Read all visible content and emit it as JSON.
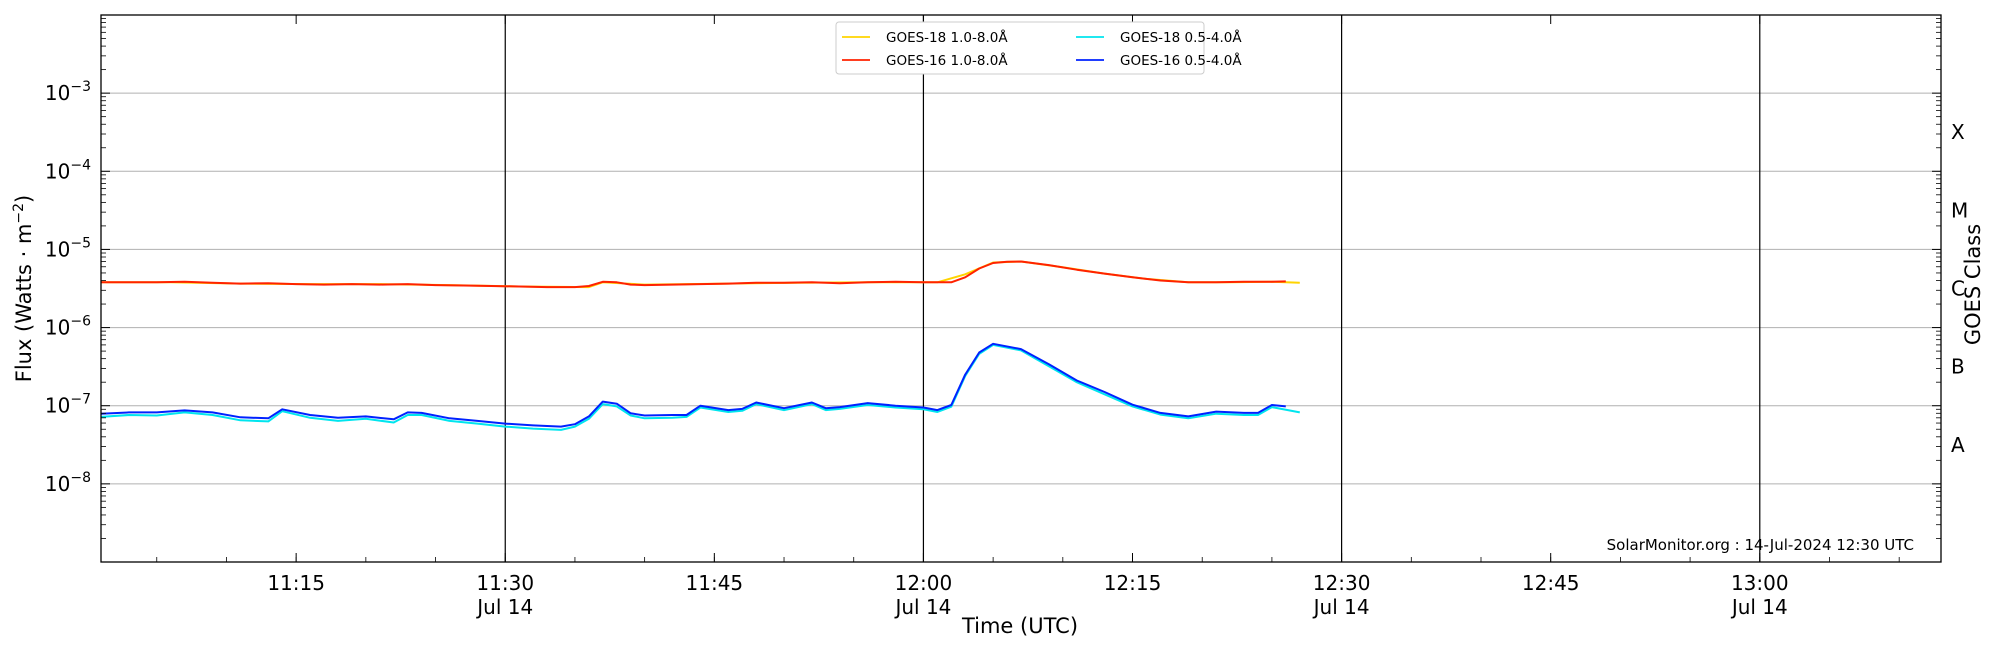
{
  "chart_data": {
    "type": "line",
    "xlabel": "Time (UTC)",
    "ylabel_main": "Flux (Watts · m",
    "ylabel_sup": "−2",
    "ylabel_end": ")",
    "y2label": "GOES Class",
    "yscale": "log",
    "ylim": [
      1e-09,
      0.01
    ],
    "xlim_minutes": [
      "11:01",
      "13:13"
    ],
    "grid_y": true,
    "legend_position": "top-center",
    "credit": "SolarMonitor.org : 14-Jul-2024 12:30 UTC",
    "x_ticks": [
      {
        "time": "11:15",
        "label": "11:15",
        "sub": ""
      },
      {
        "time": "11:30",
        "label": "11:30",
        "sub": "Jul 14"
      },
      {
        "time": "11:45",
        "label": "11:45",
        "sub": ""
      },
      {
        "time": "12:00",
        "label": "12:00",
        "sub": "Jul 14"
      },
      {
        "time": "12:15",
        "label": "12:15",
        "sub": ""
      },
      {
        "time": "12:30",
        "label": "12:30",
        "sub": "Jul 14"
      },
      {
        "time": "12:45",
        "label": "12:45",
        "sub": ""
      },
      {
        "time": "13:00",
        "label": "13:00",
        "sub": "Jul 14"
      }
    ],
    "vlines": [
      "11:30",
      "12:00",
      "12:30",
      "13:00"
    ],
    "y_ticks": [
      {
        "value": 1e-08,
        "base": "10",
        "exp": "−8"
      },
      {
        "value": 1e-07,
        "base": "10",
        "exp": "−7"
      },
      {
        "value": 1e-06,
        "base": "10",
        "exp": "−6"
      },
      {
        "value": 1e-05,
        "base": "10",
        "exp": "−5"
      },
      {
        "value": 0.0001,
        "base": "10",
        "exp": "−4"
      },
      {
        "value": 0.001,
        "base": "10",
        "exp": "−3"
      }
    ],
    "goes_classes": [
      {
        "label": "A",
        "value": 3.16e-08
      },
      {
        "label": "B",
        "value": 3.16e-07
      },
      {
        "label": "C",
        "value": 3.16e-06
      },
      {
        "label": "M",
        "value": 3.16e-05
      },
      {
        "label": "X",
        "value": 0.000316
      }
    ],
    "legend": [
      {
        "name": "GOES-18 1.0-8.0Å",
        "color": "#ffd400"
      },
      {
        "name": "GOES-16 1.0-8.0Å",
        "color": "#ff2200"
      },
      {
        "name": "GOES-18 0.5-4.0Å",
        "color": "#00e5ee"
      },
      {
        "name": "GOES-16 0.5-4.0Å",
        "color": "#0022ff"
      }
    ],
    "series": [
      {
        "name": "GOES-18 1.0-8.0Å",
        "color": "#ffd400",
        "x": [
          "11:01",
          "11:06",
          "11:11",
          "11:16",
          "11:21",
          "11:26",
          "11:31",
          "11:36",
          "11:37",
          "11:40",
          "11:46",
          "11:51",
          "11:56",
          "12:01",
          "12:03",
          "12:05",
          "12:07",
          "12:10",
          "12:13",
          "12:16",
          "12:19",
          "12:22",
          "12:25",
          "12:27"
        ],
        "y": [
          3.8e-06,
          3.8e-06,
          3.65e-06,
          3.6e-06,
          3.6e-06,
          3.5e-06,
          3.35e-06,
          3.3e-06,
          3.8e-06,
          3.55e-06,
          3.65e-06,
          3.75e-06,
          3.8e-06,
          3.8e-06,
          4.8e-06,
          6.8e-06,
          7e-06,
          5.9e-06,
          4.9e-06,
          4.2e-06,
          3.8e-06,
          3.8e-06,
          3.85e-06,
          3.75e-06
        ]
      },
      {
        "name": "GOES-16 1.0-8.0Å",
        "color": "#ff2200",
        "x": [
          "11:01",
          "11:03",
          "11:05",
          "11:07",
          "11:09",
          "11:11",
          "11:13",
          "11:15",
          "11:17",
          "11:19",
          "11:21",
          "11:23",
          "11:25",
          "11:27",
          "11:29",
          "11:31",
          "11:33",
          "11:35",
          "11:36",
          "11:37",
          "11:38",
          "11:39",
          "11:40",
          "11:42",
          "11:44",
          "11:46",
          "11:48",
          "11:50",
          "11:52",
          "11:54",
          "11:56",
          "11:58",
          "12:00",
          "12:02",
          "12:03",
          "12:04",
          "12:05",
          "12:06",
          "12:07",
          "12:09",
          "12:11",
          "12:13",
          "12:15",
          "12:17",
          "12:19",
          "12:21",
          "12:23",
          "12:25",
          "12:26"
        ],
        "y": [
          3.8e-06,
          3.8e-06,
          3.8e-06,
          3.85e-06,
          3.75e-06,
          3.65e-06,
          3.7e-06,
          3.6e-06,
          3.55e-06,
          3.6e-06,
          3.55e-06,
          3.6e-06,
          3.5e-06,
          3.45e-06,
          3.4e-06,
          3.35e-06,
          3.3e-06,
          3.3e-06,
          3.4e-06,
          3.85e-06,
          3.8e-06,
          3.55e-06,
          3.5e-06,
          3.55e-06,
          3.6e-06,
          3.65e-06,
          3.75e-06,
          3.75e-06,
          3.8e-06,
          3.7e-06,
          3.8e-06,
          3.85e-06,
          3.8e-06,
          3.8e-06,
          4.4e-06,
          5.7e-06,
          6.7e-06,
          6.95e-06,
          7e-06,
          6.3e-06,
          5.5e-06,
          4.9e-06,
          4.4e-06,
          4e-06,
          3.8e-06,
          3.8e-06,
          3.85e-06,
          3.85e-06,
          3.9e-06
        ]
      },
      {
        "name": "GOES-18 0.5-4.0Å",
        "color": "#00e5ee",
        "x": [
          "11:01",
          "11:03",
          "11:05",
          "11:07",
          "11:09",
          "11:11",
          "11:13",
          "11:14",
          "11:16",
          "11:18",
          "11:20",
          "11:22",
          "11:23",
          "11:24",
          "11:26",
          "11:28",
          "11:30",
          "11:32",
          "11:34",
          "11:35",
          "11:36",
          "11:37",
          "11:38",
          "11:39",
          "11:40",
          "11:42",
          "11:43",
          "11:44",
          "11:46",
          "11:47",
          "11:48",
          "11:50",
          "11:52",
          "11:53",
          "11:54",
          "11:56",
          "11:58",
          "12:00",
          "12:01",
          "12:02",
          "12:03",
          "12:04",
          "12:05",
          "12:07",
          "12:09",
          "12:11",
          "12:13",
          "12:15",
          "12:17",
          "12:19",
          "12:21",
          "12:23",
          "12:24",
          "12:25",
          "12:27"
        ],
        "y": [
          7.2e-08,
          7.6e-08,
          7.5e-08,
          8.2e-08,
          7.6e-08,
          6.5e-08,
          6.3e-08,
          8.5e-08,
          7e-08,
          6.4e-08,
          6.8e-08,
          6.1e-08,
          7.6e-08,
          7.6e-08,
          6.4e-08,
          5.9e-08,
          5.4e-08,
          5.1e-08,
          4.9e-08,
          5.4e-08,
          6.8e-08,
          1.05e-07,
          9.8e-08,
          7.5e-08,
          6.9e-08,
          7e-08,
          7.2e-08,
          9.5e-08,
          8.3e-08,
          8.6e-08,
          1.05e-07,
          8.8e-08,
          1.05e-07,
          8.8e-08,
          9.1e-08,
          1.02e-07,
          9.5e-08,
          9e-08,
          8.3e-08,
          9.7e-08,
          2.4e-07,
          4.6e-07,
          6e-07,
          5.1e-07,
          3.2e-07,
          2e-07,
          1.4e-07,
          9.8e-08,
          7.7e-08,
          6.9e-08,
          7.9e-08,
          7.6e-08,
          7.6e-08,
          9.6e-08,
          8.2e-08
        ]
      },
      {
        "name": "GOES-16 0.5-4.0Å",
        "color": "#0022ff",
        "x": [
          "11:01",
          "11:03",
          "11:05",
          "11:07",
          "11:09",
          "11:11",
          "11:13",
          "11:14",
          "11:16",
          "11:18",
          "11:20",
          "11:22",
          "11:23",
          "11:24",
          "11:26",
          "11:28",
          "11:30",
          "11:32",
          "11:34",
          "11:35",
          "11:36",
          "11:37",
          "11:38",
          "11:39",
          "11:40",
          "11:42",
          "11:43",
          "11:44",
          "11:46",
          "11:47",
          "11:48",
          "11:50",
          "11:52",
          "11:53",
          "11:54",
          "11:56",
          "11:58",
          "12:00",
          "12:01",
          "12:02",
          "12:03",
          "12:04",
          "12:05",
          "12:07",
          "12:09",
          "12:11",
          "12:13",
          "12:15",
          "12:17",
          "12:19",
          "12:21",
          "12:23",
          "12:24",
          "12:25",
          "12:26"
        ],
        "y": [
          7.9e-08,
          8.2e-08,
          8.2e-08,
          8.7e-08,
          8.2e-08,
          7.1e-08,
          6.9e-08,
          9e-08,
          7.6e-08,
          7e-08,
          7.3e-08,
          6.7e-08,
          8.2e-08,
          8.1e-08,
          6.9e-08,
          6.4e-08,
          5.9e-08,
          5.6e-08,
          5.4e-08,
          5.8e-08,
          7.3e-08,
          1.13e-07,
          1.06e-07,
          8e-08,
          7.5e-08,
          7.6e-08,
          7.6e-08,
          1e-07,
          8.8e-08,
          9.1e-08,
          1.1e-07,
          9.3e-08,
          1.1e-07,
          9.3e-08,
          9.6e-08,
          1.08e-07,
          1e-07,
          9.5e-08,
          8.8e-08,
          1.02e-07,
          2.5e-07,
          4.8e-07,
          6.2e-07,
          5.3e-07,
          3.4e-07,
          2.1e-07,
          1.5e-07,
          1.03e-07,
          8.1e-08,
          7.3e-08,
          8.4e-08,
          8.1e-08,
          8.1e-08,
          1.02e-07,
          9.8e-08
        ]
      }
    ]
  }
}
